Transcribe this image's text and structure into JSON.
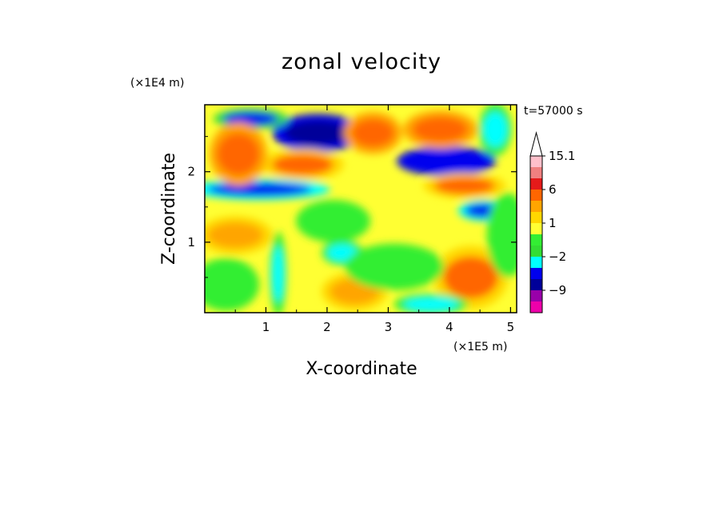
{
  "chart_data": {
    "type": "heatmap",
    "title": "zonal velocity",
    "xlabel": "X-coordinate",
    "ylabel": "Z-coordinate",
    "x_unit": "(×1E5 m)",
    "y_unit": "(×1E4 m)",
    "annotation": "t=57000 s",
    "xlim": [
      0,
      5.1
    ],
    "ylim": [
      0,
      2.95
    ],
    "x_ticks": [
      {
        "value": 1,
        "label": "1"
      },
      {
        "value": 2,
        "label": "2"
      },
      {
        "value": 3,
        "label": "3"
      },
      {
        "value": 4,
        "label": "4"
      },
      {
        "value": 5,
        "label": "5"
      }
    ],
    "y_ticks": [
      {
        "value": 1,
        "label": "1"
      },
      {
        "value": 2,
        "label": "2"
      }
    ],
    "colorbar": {
      "levels": [
        {
          "upper": null,
          "color": "#ffffff"
        },
        {
          "upper": 15.1,
          "color": "#ffc0cb"
        },
        {
          "upper": 12,
          "color": "#f08080"
        },
        {
          "upper": 9,
          "color": "#e51a1a"
        },
        {
          "upper": 6,
          "color": "#ff6600"
        },
        {
          "upper": 3,
          "color": "#ffa500"
        },
        {
          "upper": 2,
          "color": "#ffd700"
        },
        {
          "upper": 1,
          "color": "#ffff33"
        },
        {
          "upper": 0,
          "color": "#33ee33"
        },
        {
          "upper": -1,
          "color": "#33dd33"
        },
        {
          "upper": -2,
          "color": "#00ffff"
        },
        {
          "upper": -3,
          "color": "#0000ee"
        },
        {
          "upper": -6,
          "color": "#000099"
        },
        {
          "upper": -9,
          "color": "#9900aa"
        },
        {
          "upper": -12,
          "color": "#ee00aa"
        }
      ],
      "labels": [
        "15.1",
        "6",
        "1",
        "−2",
        "−9"
      ]
    },
    "field_features": [
      {
        "x": 1.85,
        "z": 2.55,
        "rx": 0.55,
        "rz": 0.18,
        "value": -7
      },
      {
        "x": 3.95,
        "z": 2.15,
        "rx": 0.6,
        "rz": 0.14,
        "value": -6
      },
      {
        "x": 0.9,
        "z": 1.75,
        "rx": 0.85,
        "rz": 0.1,
        "value": -5
      },
      {
        "x": 0.75,
        "z": 2.75,
        "rx": 0.45,
        "rz": 0.1,
        "value": -4
      },
      {
        "x": 4.55,
        "z": 1.45,
        "rx": 0.3,
        "rz": 0.1,
        "value": -5
      },
      {
        "x": 1.2,
        "z": 0.55,
        "rx": 0.1,
        "rz": 0.4,
        "value": -3
      },
      {
        "x": 2.25,
        "z": 0.85,
        "rx": 0.25,
        "rz": 0.12,
        "value": -3
      },
      {
        "x": 4.75,
        "z": 2.6,
        "rx": 0.2,
        "rz": 0.25,
        "value": -3
      },
      {
        "x": 2.75,
        "z": 2.55,
        "rx": 0.35,
        "rz": 0.2,
        "value": 4
      },
      {
        "x": 3.85,
        "z": 2.6,
        "rx": 0.45,
        "rz": 0.18,
        "value": 4
      },
      {
        "x": 1.6,
        "z": 2.1,
        "rx": 0.5,
        "rz": 0.15,
        "value": 3
      },
      {
        "x": 0.55,
        "z": 2.25,
        "rx": 0.35,
        "rz": 0.3,
        "value": 4
      },
      {
        "x": 4.25,
        "z": 1.8,
        "rx": 0.5,
        "rz": 0.12,
        "value": 3
      },
      {
        "x": 4.35,
        "z": 0.5,
        "rx": 0.45,
        "rz": 0.3,
        "value": 3
      },
      {
        "x": 2.45,
        "z": 0.3,
        "rx": 0.4,
        "rz": 0.18,
        "value": 2
      },
      {
        "x": 3.1,
        "z": 0.65,
        "rx": 0.6,
        "rz": 0.22,
        "value": -0.5
      },
      {
        "x": 0.35,
        "z": 0.4,
        "rx": 0.4,
        "rz": 0.25,
        "value": -0.5
      },
      {
        "x": 2.1,
        "z": 1.3,
        "rx": 0.45,
        "rz": 0.2,
        "value": -0.5
      },
      {
        "x": 4.95,
        "z": 1.1,
        "rx": 0.25,
        "rz": 0.4,
        "value": -0.5
      },
      {
        "x": 3.7,
        "z": 0.12,
        "rx": 0.45,
        "rz": 0.1,
        "value": -2.5
      },
      {
        "x": 0.5,
        "z": 1.1,
        "rx": 0.45,
        "rz": 0.18,
        "value": 2
      }
    ]
  }
}
